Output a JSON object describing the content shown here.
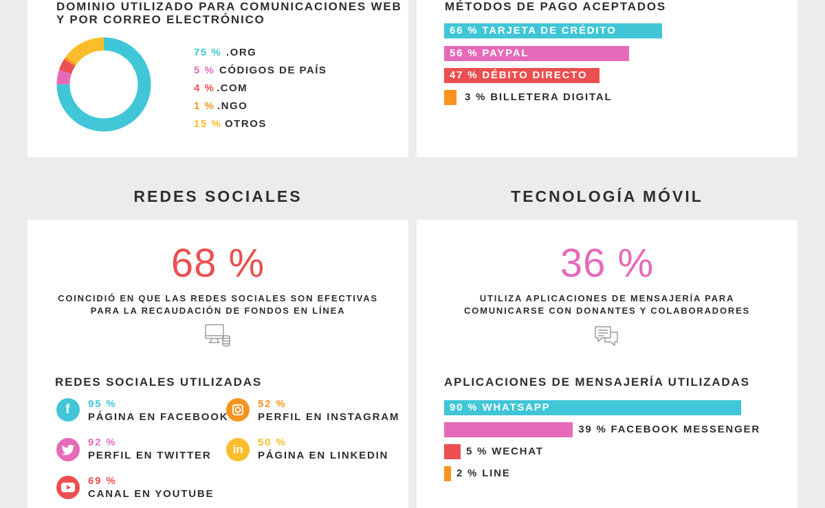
{
  "colors": {
    "teal": "#40c6d6",
    "pink": "#e66ab9",
    "red": "#ec4f4f",
    "orange": "#f7941e",
    "yellow": "#fbbd2b"
  },
  "domain_card": {
    "title_line1": "DOMINIO UTILIZADO PARA COMUNICACIONES WEB",
    "title_line2": "Y POR CORREO ELECTRÓNICO",
    "legend": [
      {
        "pct": "75 %",
        "label": ".ORG"
      },
      {
        "pct": "5 %",
        "label": "CÓDIGOS DE PAÍS"
      },
      {
        "pct": "4 %",
        "label": ".COM"
      },
      {
        "pct": "1 %",
        "label": ".NGO"
      },
      {
        "pct": "15 %",
        "label": "OTROS"
      }
    ]
  },
  "payment_card": {
    "title": "MÉTODOS DE PAGO ACEPTADOS",
    "bars": [
      {
        "label": "66 % TARJETA DE CRÉDITO"
      },
      {
        "label": "56 % PAYPAL"
      },
      {
        "label": "47 % DÉBITO DIRECTO"
      },
      {
        "label": "3 % BILLETERA DIGITAL"
      }
    ]
  },
  "social_section": {
    "heading": "REDES SOCIALES",
    "big_stat": "68 %",
    "desc_line1": "COINCIDIÓ EN QUE LAS REDES SOCIALES SON EFECTIVAS",
    "desc_line2": "PARA LA RECAUDACIÓN DE FONDOS EN LÍNEA",
    "icon": "computer-coins-icon",
    "sub_title": "REDES SOCIALES UTILIZADAS",
    "networks": [
      {
        "pct": "95 %",
        "name": "PÁGINA EN FACEBOOK",
        "icon": "facebook-icon"
      },
      {
        "pct": "52 %",
        "name": "PERFIL EN INSTAGRAM",
        "icon": "instagram-icon"
      },
      {
        "pct": "92 %",
        "name": "PERFIL EN TWITTER",
        "icon": "twitter-icon"
      },
      {
        "pct": "50 %",
        "name": "PÁGINA EN LINKEDIN",
        "icon": "linkedin-icon"
      },
      {
        "pct": "69 %",
        "name": "CANAL EN YOUTUBE",
        "icon": "youtube-icon"
      }
    ]
  },
  "mobile_section": {
    "heading": "TECNOLOGÍA MÓVIL",
    "big_stat": "36 %",
    "desc_line1": "UTILIZA APLICACIONES DE MENSAJERÍA PARA",
    "desc_line2": "COMUNICARSE CON DONANTES Y COLABORADORES",
    "icon": "chat-bubbles-icon",
    "sub_title": "APLICACIONES DE MENSAJERÍA UTILIZADAS",
    "bars": [
      {
        "label": "90 % WHATSAPP"
      },
      {
        "label": "39 % FACEBOOK MESSENGER"
      },
      {
        "label": "5 % WECHAT"
      },
      {
        "label": "2 % LINE"
      }
    ]
  },
  "chart_data": [
    {
      "type": "pie",
      "categories": [
        ".ORG",
        "CÓDIGOS DE PAÍS",
        ".COM",
        ".NGO",
        "OTROS"
      ],
      "values": [
        75,
        5,
        4,
        1,
        15
      ],
      "colors": [
        "#40c6d6",
        "#e66ab9",
        "#ec4f4f",
        "#f7941e",
        "#fbbd2b"
      ],
      "title": "DOMINIO UTILIZADO PARA COMUNICACIONES WEB Y POR CORREO ELECTRÓNICO"
    },
    {
      "type": "bar",
      "categories": [
        "TARJETA DE CRÉDITO",
        "PAYPAL",
        "DÉBITO DIRECTO",
        "BILLETERA DIGITAL"
      ],
      "values": [
        66,
        56,
        47,
        3
      ],
      "colors": [
        "#40c6d6",
        "#e66ab9",
        "#ec4f4f",
        "#f7941e"
      ],
      "title": "MÉTODOS DE PAGO ACEPTADOS"
    },
    {
      "type": "bar",
      "categories": [
        "WHATSAPP",
        "FACEBOOK MESSENGER",
        "WECHAT",
        "LINE"
      ],
      "values": [
        90,
        39,
        5,
        2
      ],
      "colors": [
        "#40c6d6",
        "#e66ab9",
        "#ec4f4f",
        "#f7941e"
      ],
      "title": "APLICACIONES DE MENSAJERÍA UTILIZADAS"
    }
  ]
}
